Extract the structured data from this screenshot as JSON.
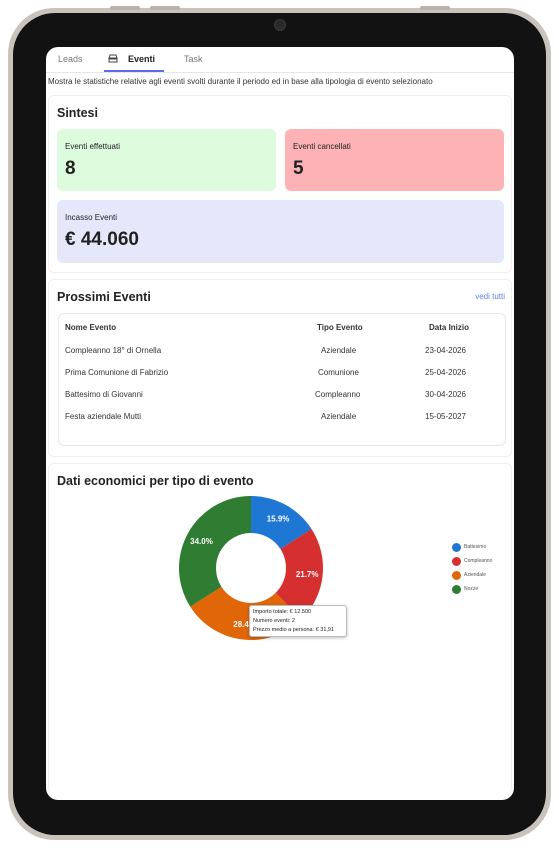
{
  "tabs": [
    {
      "label": "Leads"
    },
    {
      "label": "Eventi"
    },
    {
      "label": "Task"
    }
  ],
  "description": "Mostra le statistiche relative agli eventi svolti durante il periodo ed in base alla tipologia di evento selezionato",
  "sintesi": {
    "title": "Sintesi",
    "effettuati": {
      "label": "Eventi effettuati",
      "value": "8"
    },
    "cancellati": {
      "label": "Eventi cancellati",
      "value": "5"
    },
    "incasso": {
      "label": "Incasso Eventi",
      "value": "€ 44.060"
    }
  },
  "prossimi": {
    "title": "Prossimi Eventi",
    "link": "vedi tutti",
    "headers": [
      "Nome Evento",
      "Tipo Evento",
      "Data Inizio"
    ],
    "rows": [
      [
        "Compleanno 18° di Ornella",
        "Aziendale",
        "23-04-2026"
      ],
      [
        "Prima Comunione di Fabrizio",
        "Comunione",
        "25-04-2026"
      ],
      [
        "Battesimo di Giovanni",
        "Compleanno",
        "30-04-2026"
      ],
      [
        "Festa aziendale Mutti",
        "Aziendale",
        "15-05-2027"
      ]
    ]
  },
  "economici": {
    "title": "Dati economici per tipo di evento",
    "tooltip": {
      "line1": "Importo totale: € 12.500",
      "line2": "Numero eventi: 2",
      "line3": "Prezzo medio a persona: € 31,91"
    }
  },
  "colors": {
    "green_card": "#ddfbdd",
    "red_card": "#fdb3b6",
    "blue_card": "#e5e7fb",
    "accent": "#5b6ee8"
  },
  "chart_data": {
    "type": "pie",
    "categories": [
      "Battesimo",
      "Compleanno",
      "Aziendale",
      "Nozze"
    ],
    "values": [
      15.9,
      21.7,
      28.4,
      34.0
    ],
    "labels": [
      "15.9%",
      "21.7%",
      "28.4%",
      "34.0%"
    ],
    "colors": [
      "#1f77d4",
      "#d62f2f",
      "#e06608",
      "#2e7d32"
    ],
    "legend": "right"
  }
}
